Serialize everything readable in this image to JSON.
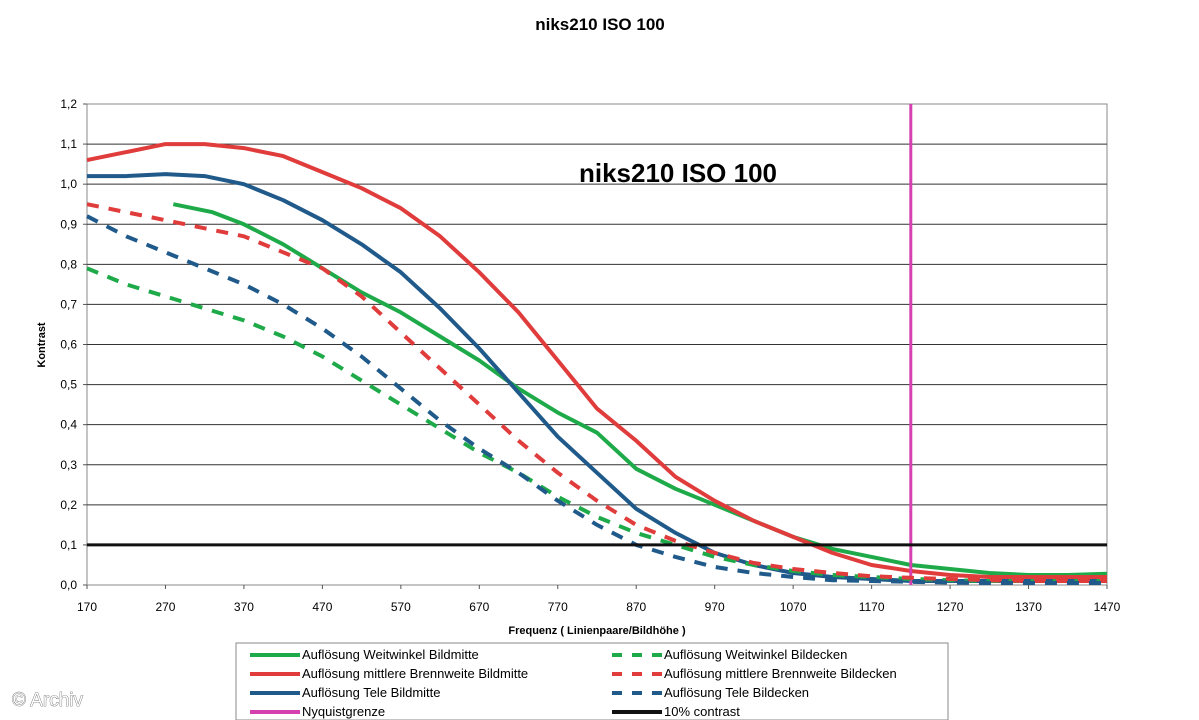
{
  "watermark": "© Archiv",
  "chart_data": {
    "type": "line",
    "title": "niks210 ISO 100",
    "inner_title": "niks210 ISO 100",
    "xlabel": "Frequenz ( Linienpaare/Bildhöhe )",
    "ylabel": "Kontrast",
    "xlim": [
      170,
      1470
    ],
    "ylim": [
      0,
      1.2
    ],
    "x_ticks": [
      "170",
      "270",
      "370",
      "470",
      "570",
      "670",
      "770",
      "870",
      "970",
      "1070",
      "1170",
      "1270",
      "1370",
      "1470"
    ],
    "y_ticks": [
      "0,0",
      "0,1",
      "0,2",
      "0,3",
      "0,4",
      "0,5",
      "0,6",
      "0,7",
      "0,8",
      "0,9",
      "1,0",
      "1,1",
      "1,2"
    ],
    "grid": "horizontal",
    "legend_position": "bottom",
    "series": [
      {
        "name": "Auflösung Weitwinkel Bildmitte",
        "color": "#1faa4a",
        "style": "solid",
        "x": [
          280,
          330,
          370,
          420,
          470,
          520,
          570,
          620,
          670,
          720,
          770,
          820,
          870,
          920,
          970,
          1020,
          1070,
          1120,
          1170,
          1220,
          1270,
          1320,
          1370,
          1420,
          1470
        ],
        "y": [
          0.95,
          0.93,
          0.9,
          0.85,
          0.79,
          0.73,
          0.68,
          0.62,
          0.56,
          0.49,
          0.43,
          0.38,
          0.29,
          0.24,
          0.2,
          0.16,
          0.12,
          0.09,
          0.07,
          0.05,
          0.04,
          0.03,
          0.025,
          0.025,
          0.028
        ]
      },
      {
        "name": "Auflösung mittlere Brennweite Bildmitte",
        "color": "#e03c3c",
        "style": "solid",
        "x": [
          170,
          220,
          270,
          320,
          370,
          420,
          470,
          520,
          570,
          620,
          670,
          720,
          770,
          820,
          870,
          920,
          970,
          1020,
          1070,
          1120,
          1170,
          1220,
          1270,
          1320,
          1370,
          1420,
          1470
        ],
        "y": [
          1.06,
          1.08,
          1.1,
          1.1,
          1.09,
          1.07,
          1.03,
          0.99,
          0.94,
          0.87,
          0.78,
          0.68,
          0.56,
          0.44,
          0.36,
          0.27,
          0.21,
          0.16,
          0.12,
          0.08,
          0.05,
          0.035,
          0.025,
          0.02,
          0.02,
          0.02,
          0.02
        ]
      },
      {
        "name": "Auflösung Tele Bildmitte",
        "color": "#1f5a8a",
        "style": "solid",
        "x": [
          170,
          220,
          270,
          320,
          370,
          420,
          470,
          520,
          570,
          620,
          670,
          720,
          770,
          820,
          870,
          920,
          970,
          1020,
          1070,
          1120,
          1170,
          1220,
          1270,
          1320,
          1370,
          1420,
          1470
        ],
        "y": [
          1.02,
          1.02,
          1.025,
          1.02,
          1.0,
          0.96,
          0.91,
          0.85,
          0.78,
          0.69,
          0.59,
          0.48,
          0.37,
          0.28,
          0.19,
          0.13,
          0.08,
          0.05,
          0.03,
          0.02,
          0.015,
          0.01,
          0.01,
          0.01,
          0.01,
          0.01,
          0.01
        ]
      },
      {
        "name": "Nyquistgrenze",
        "color": "#d63fb0",
        "style": "solid",
        "x": [
          1220,
          1220
        ],
        "y": [
          0,
          1.2
        ]
      },
      {
        "name": "Auflösung Weitwinkel Bildecken",
        "color": "#1faa4a",
        "style": "dashed",
        "x": [
          170,
          220,
          270,
          320,
          370,
          420,
          470,
          520,
          570,
          620,
          670,
          720,
          770,
          820,
          870,
          920,
          970,
          1020,
          1070,
          1120,
          1170,
          1220,
          1270,
          1320,
          1370,
          1420,
          1470
        ],
        "y": [
          0.79,
          0.75,
          0.72,
          0.69,
          0.66,
          0.62,
          0.57,
          0.51,
          0.45,
          0.39,
          0.33,
          0.28,
          0.22,
          0.17,
          0.13,
          0.1,
          0.07,
          0.05,
          0.035,
          0.025,
          0.02,
          0.015,
          0.012,
          0.01,
          0.01,
          0.01,
          0.01
        ]
      },
      {
        "name": "Auflösung mittlere Brennweite Bildecken",
        "color": "#e03c3c",
        "style": "dashed",
        "x": [
          170,
          220,
          270,
          320,
          370,
          420,
          470,
          520,
          570,
          620,
          670,
          720,
          770,
          820,
          870,
          920,
          970,
          1020,
          1070,
          1120,
          1170,
          1220,
          1270,
          1320,
          1370,
          1420,
          1470
        ],
        "y": [
          0.95,
          0.93,
          0.91,
          0.89,
          0.87,
          0.83,
          0.79,
          0.72,
          0.63,
          0.54,
          0.45,
          0.36,
          0.28,
          0.21,
          0.15,
          0.11,
          0.08,
          0.055,
          0.04,
          0.03,
          0.022,
          0.018,
          0.015,
          0.012,
          0.01,
          0.01,
          0.01
        ]
      },
      {
        "name": "Auflösung Tele Bildecken",
        "color": "#1f5a8a",
        "style": "dashed",
        "x": [
          170,
          220,
          270,
          320,
          370,
          420,
          470,
          520,
          570,
          620,
          670,
          720,
          770,
          820,
          870,
          920,
          970,
          1020,
          1070,
          1120,
          1170,
          1220,
          1270,
          1320,
          1370,
          1420,
          1470
        ],
        "y": [
          0.92,
          0.87,
          0.83,
          0.79,
          0.75,
          0.7,
          0.64,
          0.57,
          0.49,
          0.41,
          0.34,
          0.28,
          0.21,
          0.15,
          0.1,
          0.07,
          0.045,
          0.03,
          0.02,
          0.012,
          0.01,
          0.008,
          0.006,
          0.005,
          0.005,
          0.005,
          0.005
        ]
      },
      {
        "name": "10% contrast",
        "color": "#111111",
        "style": "solid",
        "x": [
          170,
          1470
        ],
        "y": [
          0.1,
          0.1
        ]
      }
    ]
  }
}
